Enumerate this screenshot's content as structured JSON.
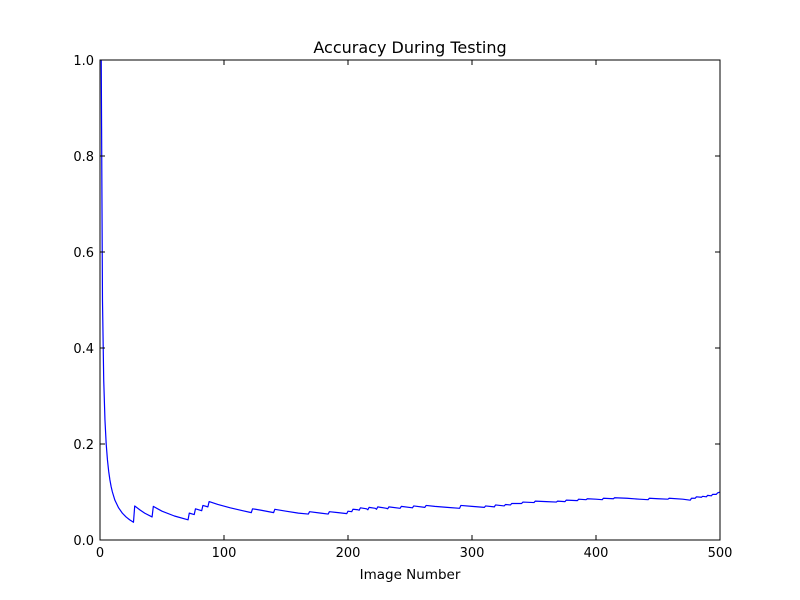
{
  "chart_data": {
    "type": "line",
    "title": "Accuracy During Testing",
    "xlabel": "Image Number",
    "ylabel": "",
    "xlim": [
      0,
      500
    ],
    "ylim": [
      0.0,
      1.0
    ],
    "x_ticks": [
      0,
      100,
      200,
      300,
      400,
      500
    ],
    "y_ticks": [
      0.0,
      0.2,
      0.4,
      0.6,
      0.8,
      1.0
    ],
    "x_tick_labels": [
      "0",
      "100",
      "200",
      "300",
      "400",
      "500"
    ],
    "y_tick_labels": [
      "0.0",
      "0.2",
      "0.4",
      "0.6",
      "0.8",
      "1.0"
    ],
    "grid": false,
    "series": [
      {
        "color": "#0000ff",
        "points": [
          [
            1,
            1.0
          ],
          [
            2,
            0.5
          ],
          [
            3,
            0.333
          ],
          [
            4,
            0.25
          ],
          [
            5,
            0.2
          ],
          [
            6,
            0.167
          ],
          [
            7,
            0.143
          ],
          [
            8,
            0.125
          ],
          [
            9,
            0.111
          ],
          [
            10,
            0.1
          ],
          [
            12,
            0.083
          ],
          [
            15,
            0.067
          ],
          [
            18,
            0.056
          ],
          [
            21,
            0.048
          ],
          [
            24,
            0.042
          ],
          [
            27,
            0.037
          ],
          [
            28,
            0.071
          ],
          [
            32,
            0.063
          ],
          [
            36,
            0.056
          ],
          [
            42,
            0.048
          ],
          [
            43,
            0.07
          ],
          [
            50,
            0.06
          ],
          [
            60,
            0.05
          ],
          [
            71,
            0.042
          ],
          [
            72,
            0.056
          ],
          [
            76,
            0.053
          ],
          [
            77,
            0.065
          ],
          [
            82,
            0.061
          ],
          [
            83,
            0.072
          ],
          [
            87,
            0.069
          ],
          [
            88,
            0.08
          ],
          [
            95,
            0.074
          ],
          [
            105,
            0.067
          ],
          [
            115,
            0.061
          ],
          [
            122,
            0.057
          ],
          [
            123,
            0.065
          ],
          [
            130,
            0.062
          ],
          [
            140,
            0.057
          ],
          [
            141,
            0.064
          ],
          [
            150,
            0.06
          ],
          [
            160,
            0.056
          ],
          [
            168,
            0.054
          ],
          [
            169,
            0.059
          ],
          [
            178,
            0.056
          ],
          [
            184,
            0.054
          ],
          [
            185,
            0.059
          ],
          [
            192,
            0.057
          ],
          [
            199,
            0.055
          ],
          [
            200,
            0.06
          ],
          [
            203,
            0.059
          ],
          [
            204,
            0.064
          ],
          [
            208,
            0.063
          ],
          [
            209,
            0.062
          ],
          [
            210,
            0.067
          ],
          [
            215,
            0.065
          ],
          [
            216,
            0.063
          ],
          [
            217,
            0.068
          ],
          [
            222,
            0.066
          ],
          [
            223,
            0.064
          ],
          [
            224,
            0.069
          ],
          [
            231,
            0.066
          ],
          [
            232,
            0.065
          ],
          [
            233,
            0.069
          ],
          [
            242,
            0.066
          ],
          [
            243,
            0.07
          ],
          [
            252,
            0.067
          ],
          [
            253,
            0.071
          ],
          [
            262,
            0.068
          ],
          [
            263,
            0.072
          ],
          [
            270,
            0.07
          ],
          [
            280,
            0.068
          ],
          [
            290,
            0.066
          ],
          [
            291,
            0.072
          ],
          [
            300,
            0.07
          ],
          [
            310,
            0.068
          ],
          [
            311,
            0.071
          ],
          [
            318,
            0.069
          ],
          [
            319,
            0.073
          ],
          [
            326,
            0.071
          ],
          [
            327,
            0.074
          ],
          [
            331,
            0.073
          ],
          [
            332,
            0.076
          ],
          [
            340,
            0.076
          ],
          [
            341,
            0.079
          ],
          [
            350,
            0.078
          ],
          [
            351,
            0.081
          ],
          [
            360,
            0.08
          ],
          [
            368,
            0.079
          ],
          [
            369,
            0.081
          ],
          [
            375,
            0.08
          ],
          [
            376,
            0.083
          ],
          [
            385,
            0.082
          ],
          [
            386,
            0.085
          ],
          [
            392,
            0.084
          ],
          [
            393,
            0.086
          ],
          [
            400,
            0.085
          ],
          [
            405,
            0.084
          ],
          [
            406,
            0.087
          ],
          [
            414,
            0.086
          ],
          [
            415,
            0.088
          ],
          [
            425,
            0.087
          ],
          [
            435,
            0.085
          ],
          [
            442,
            0.084
          ],
          [
            443,
            0.087
          ],
          [
            450,
            0.086
          ],
          [
            458,
            0.085
          ],
          [
            459,
            0.087
          ],
          [
            470,
            0.085
          ],
          [
            476,
            0.083
          ],
          [
            477,
            0.087
          ],
          [
            480,
            0.087
          ],
          [
            481,
            0.09
          ],
          [
            485,
            0.089
          ],
          [
            486,
            0.091
          ],
          [
            489,
            0.09
          ],
          [
            490,
            0.093
          ],
          [
            493,
            0.092
          ],
          [
            494,
            0.095
          ],
          [
            497,
            0.095
          ],
          [
            498,
            0.098
          ],
          [
            500,
            0.1
          ]
        ]
      }
    ]
  }
}
